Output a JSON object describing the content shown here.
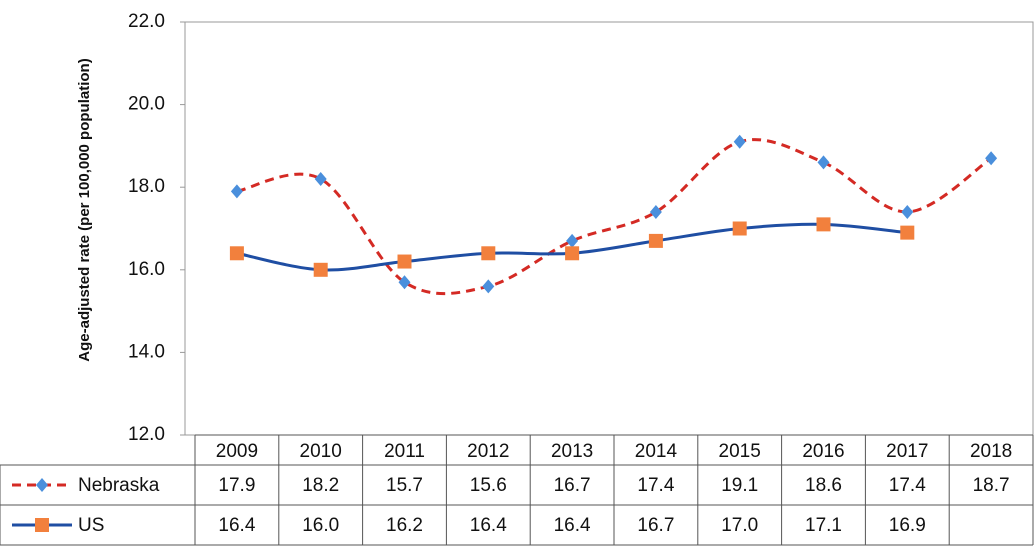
{
  "chart_data": {
    "type": "line",
    "y_label": "Age-adjusted rate (per 100,000 population)",
    "categories": [
      "2009",
      "2010",
      "2011",
      "2012",
      "2013",
      "2014",
      "2015",
      "2016",
      "2017",
      "2018"
    ],
    "ylim": [
      12,
      22
    ],
    "yticks": [
      {
        "value": 12,
        "label": "12.0"
      },
      {
        "value": 14,
        "label": "14.0"
      },
      {
        "value": 16,
        "label": "16.0"
      },
      {
        "value": 18,
        "label": "18.0"
      },
      {
        "value": 20,
        "label": "20.0"
      },
      {
        "value": 22,
        "label": "22.0"
      }
    ],
    "smooth": true,
    "series": [
      {
        "name": "Nebraska",
        "color": "#d42a24",
        "dash": true,
        "marker": "diamond",
        "marker_color": "#4a8fdc",
        "values": [
          17.9,
          18.2,
          15.7,
          15.6,
          16.7,
          17.4,
          19.1,
          18.6,
          17.4,
          18.7
        ]
      },
      {
        "name": "US",
        "color": "#1f4ea3",
        "dash": false,
        "marker": "square",
        "marker_color": "#f2803d",
        "values": [
          16.4,
          16.0,
          16.2,
          16.4,
          16.4,
          16.7,
          17.0,
          17.1,
          16.9,
          null
        ],
        "value_labels": [
          "16.4",
          "16.0",
          "16.2",
          "16.4",
          "16.4",
          "16.7",
          "17.0",
          "17.1",
          "16.9",
          null
        ]
      }
    ]
  }
}
